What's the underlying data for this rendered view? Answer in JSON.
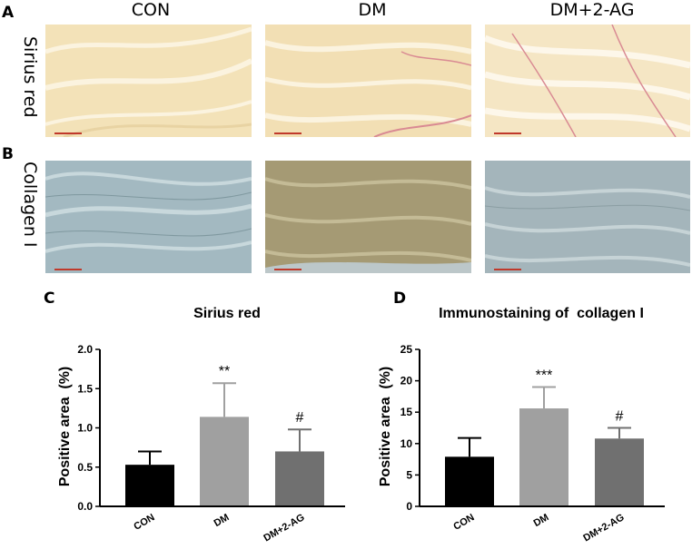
{
  "panels": {
    "a": "A",
    "b": "B",
    "c": "C",
    "d": "D"
  },
  "columns": [
    "CON",
    "DM",
    "DM+2-AG"
  ],
  "rows": [
    "Sirius red",
    "Collagen I"
  ],
  "colors": {
    "sirius_bg": "#f3e2b8",
    "sirius_stripe": "#e2c08a",
    "sirius_red": "#d98a93",
    "collagen_bg": "#9db4bd",
    "collagen_fiber": "#7f989f",
    "dm_brown": "#a59a74",
    "bar_con": "#000000",
    "bar_dm": "#a0a0a0",
    "bar_dm2ag": "#707070"
  },
  "chart_data": [
    {
      "type": "bar",
      "title": "Sirius red",
      "xlabel": "",
      "ylabel": "Positive area  (%)",
      "categories": [
        "CON",
        "DM",
        "DM+2-AG"
      ],
      "values": [
        0.53,
        1.14,
        0.7
      ],
      "errors": [
        0.17,
        0.43,
        0.28
      ],
      "annotations": [
        "",
        "**",
        "#"
      ],
      "ylim": [
        0.0,
        2.0
      ],
      "yticks": [
        "0.0",
        "0.5",
        "1.0",
        "1.5",
        "2.0"
      ],
      "ytick_values": [
        0.0,
        0.5,
        1.0,
        1.5,
        2.0
      ],
      "grid": false,
      "legend": "none"
    },
    {
      "type": "bar",
      "title": "Immunostaining of  collagen I",
      "xlabel": "",
      "ylabel": "Positive area  (%)",
      "categories": [
        "CON",
        "DM",
        "DM+2-AG"
      ],
      "values": [
        7.9,
        15.6,
        10.8
      ],
      "errors": [
        3.0,
        3.4,
        1.7
      ],
      "annotations": [
        "",
        "***",
        "#"
      ],
      "ylim": [
        0,
        25
      ],
      "yticks": [
        "0",
        "5",
        "10",
        "15",
        "20",
        "25"
      ],
      "ytick_values": [
        0,
        5,
        10,
        15,
        20,
        25
      ],
      "grid": false,
      "legend": "none"
    }
  ]
}
